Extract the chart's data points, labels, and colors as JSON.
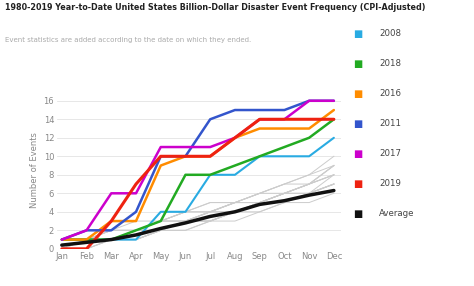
{
  "title": "1980-2019 Year-to-Date United States Billion-Dollar Disaster Event Frequency (CPI-Adjusted)",
  "subtitle": "Event statistics are added according to the date on which they ended.",
  "ylabel": "Number of Events",
  "months": [
    "Jan",
    "Feb",
    "Mar",
    "Apr",
    "May",
    "Jun",
    "Jul",
    "Aug",
    "Sep",
    "Oct",
    "Nov",
    "Dec"
  ],
  "highlighted_series": {
    "2008": {
      "color": "#29ABE2",
      "values": [
        1,
        1,
        1,
        1,
        4,
        4,
        8,
        8,
        10,
        10,
        10,
        12
      ],
      "linewidth": 1.5
    },
    "2018": {
      "color": "#22aa22",
      "values": [
        1,
        1,
        1,
        2,
        3,
        8,
        8,
        9,
        10,
        11,
        12,
        14
      ],
      "linewidth": 1.8
    },
    "2016": {
      "color": "#FF8C00",
      "values": [
        1,
        1,
        3,
        3,
        9,
        10,
        10,
        12,
        13,
        13,
        13,
        15
      ],
      "linewidth": 1.8
    },
    "2011": {
      "color": "#3355CC",
      "values": [
        1,
        2,
        2,
        4,
        10,
        10,
        14,
        15,
        15,
        15,
        16,
        16
      ],
      "linewidth": 1.8
    },
    "2017": {
      "color": "#CC00CC",
      "values": [
        1,
        2,
        6,
        6,
        11,
        11,
        11,
        12,
        14,
        14,
        16,
        16
      ],
      "linewidth": 1.8
    },
    "2019": {
      "color": "#EE2211",
      "values": [
        0,
        0,
        3,
        7,
        10,
        10,
        10,
        12,
        14,
        14,
        14,
        14
      ],
      "linewidth": 2.2
    },
    "Average": {
      "color": "#111111",
      "values": [
        0.4,
        0.7,
        1.0,
        1.5,
        2.2,
        2.8,
        3.5,
        4.0,
        4.8,
        5.2,
        5.8,
        6.3
      ],
      "linewidth": 2.5
    }
  },
  "background_series": [
    [
      1,
      1,
      1,
      2,
      2,
      3,
      3,
      4,
      5,
      6,
      7,
      8
    ],
    [
      1,
      1,
      2,
      2,
      3,
      3,
      4,
      5,
      5,
      6,
      7,
      9
    ],
    [
      0,
      1,
      1,
      1,
      2,
      3,
      4,
      4,
      5,
      5,
      6,
      7
    ],
    [
      1,
      1,
      1,
      2,
      3,
      4,
      4,
      5,
      6,
      7,
      8,
      9
    ],
    [
      0,
      0,
      1,
      2,
      2,
      3,
      3,
      4,
      5,
      5,
      6,
      8
    ],
    [
      1,
      1,
      2,
      3,
      3,
      4,
      5,
      5,
      6,
      7,
      8,
      10
    ],
    [
      0,
      1,
      1,
      1,
      2,
      3,
      3,
      4,
      5,
      6,
      6,
      7
    ],
    [
      1,
      1,
      1,
      2,
      3,
      3,
      4,
      5,
      5,
      6,
      7,
      8
    ],
    [
      0,
      0,
      1,
      1,
      2,
      2,
      3,
      3,
      4,
      5,
      5,
      6
    ],
    [
      1,
      1,
      2,
      2,
      3,
      4,
      4,
      5,
      6,
      7,
      7,
      9
    ],
    [
      0,
      1,
      1,
      2,
      3,
      3,
      4,
      4,
      5,
      6,
      6,
      7
    ],
    [
      1,
      1,
      1,
      2,
      2,
      3,
      4,
      5,
      5,
      6,
      7,
      8
    ],
    [
      0,
      0,
      1,
      1,
      2,
      3,
      3,
      4,
      4,
      5,
      6,
      7
    ],
    [
      1,
      1,
      2,
      2,
      3,
      4,
      5,
      5,
      6,
      6,
      7,
      9
    ],
    [
      0,
      1,
      1,
      1,
      2,
      2,
      3,
      4,
      5,
      5,
      6,
      7
    ]
  ],
  "background_color": "#ffffff",
  "ylim": [
    0,
    17
  ],
  "figure_width": 4.74,
  "figure_height": 2.86,
  "dpi": 100
}
